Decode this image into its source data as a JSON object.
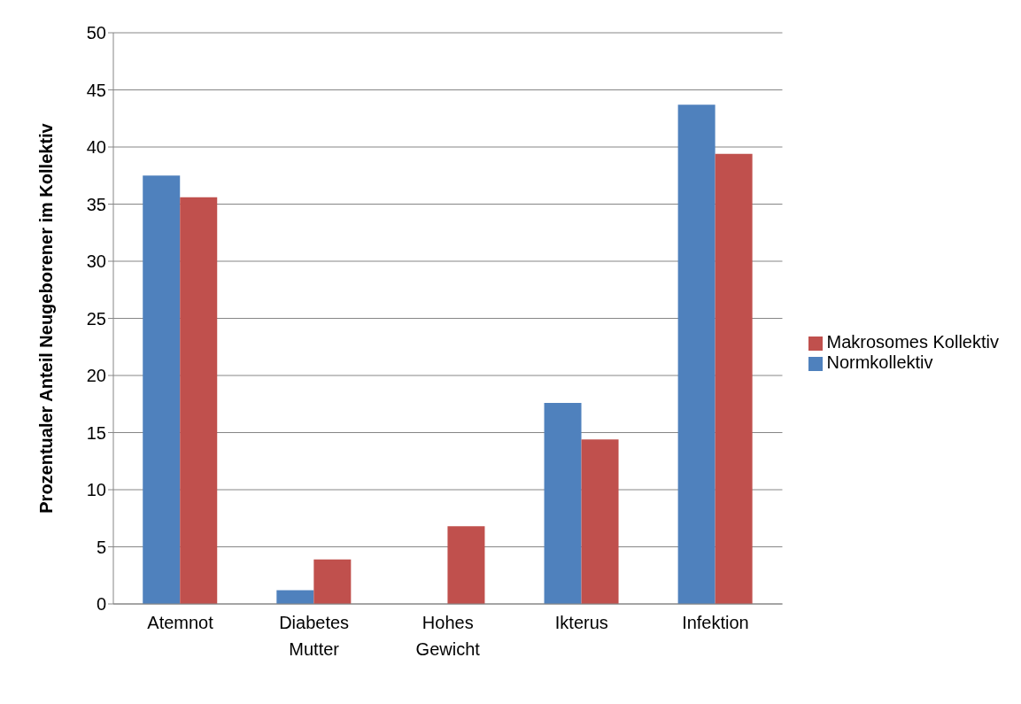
{
  "chart_data": {
    "type": "bar",
    "ylabel": "Prozentualer Anteil Neugeborener im Kollektiv",
    "categories": [
      "Atemnot",
      "Diabetes Mutter",
      "Hohes Gewicht",
      "Ikterus",
      "Infektion"
    ],
    "series": [
      {
        "name": "Normkollektiv",
        "color": "#4f81bd",
        "values": [
          37.5,
          1.2,
          0,
          17.6,
          43.7
        ]
      },
      {
        "name": "Makrosomes Kollektiv",
        "color": "#c0504d",
        "values": [
          35.6,
          3.9,
          6.8,
          14.4,
          39.4
        ]
      }
    ],
    "ylim": [
      0,
      50
    ],
    "yticks": [
      0,
      5,
      10,
      15,
      20,
      25,
      30,
      35,
      40,
      45,
      50
    ],
    "grid": "y",
    "legend": "right"
  }
}
